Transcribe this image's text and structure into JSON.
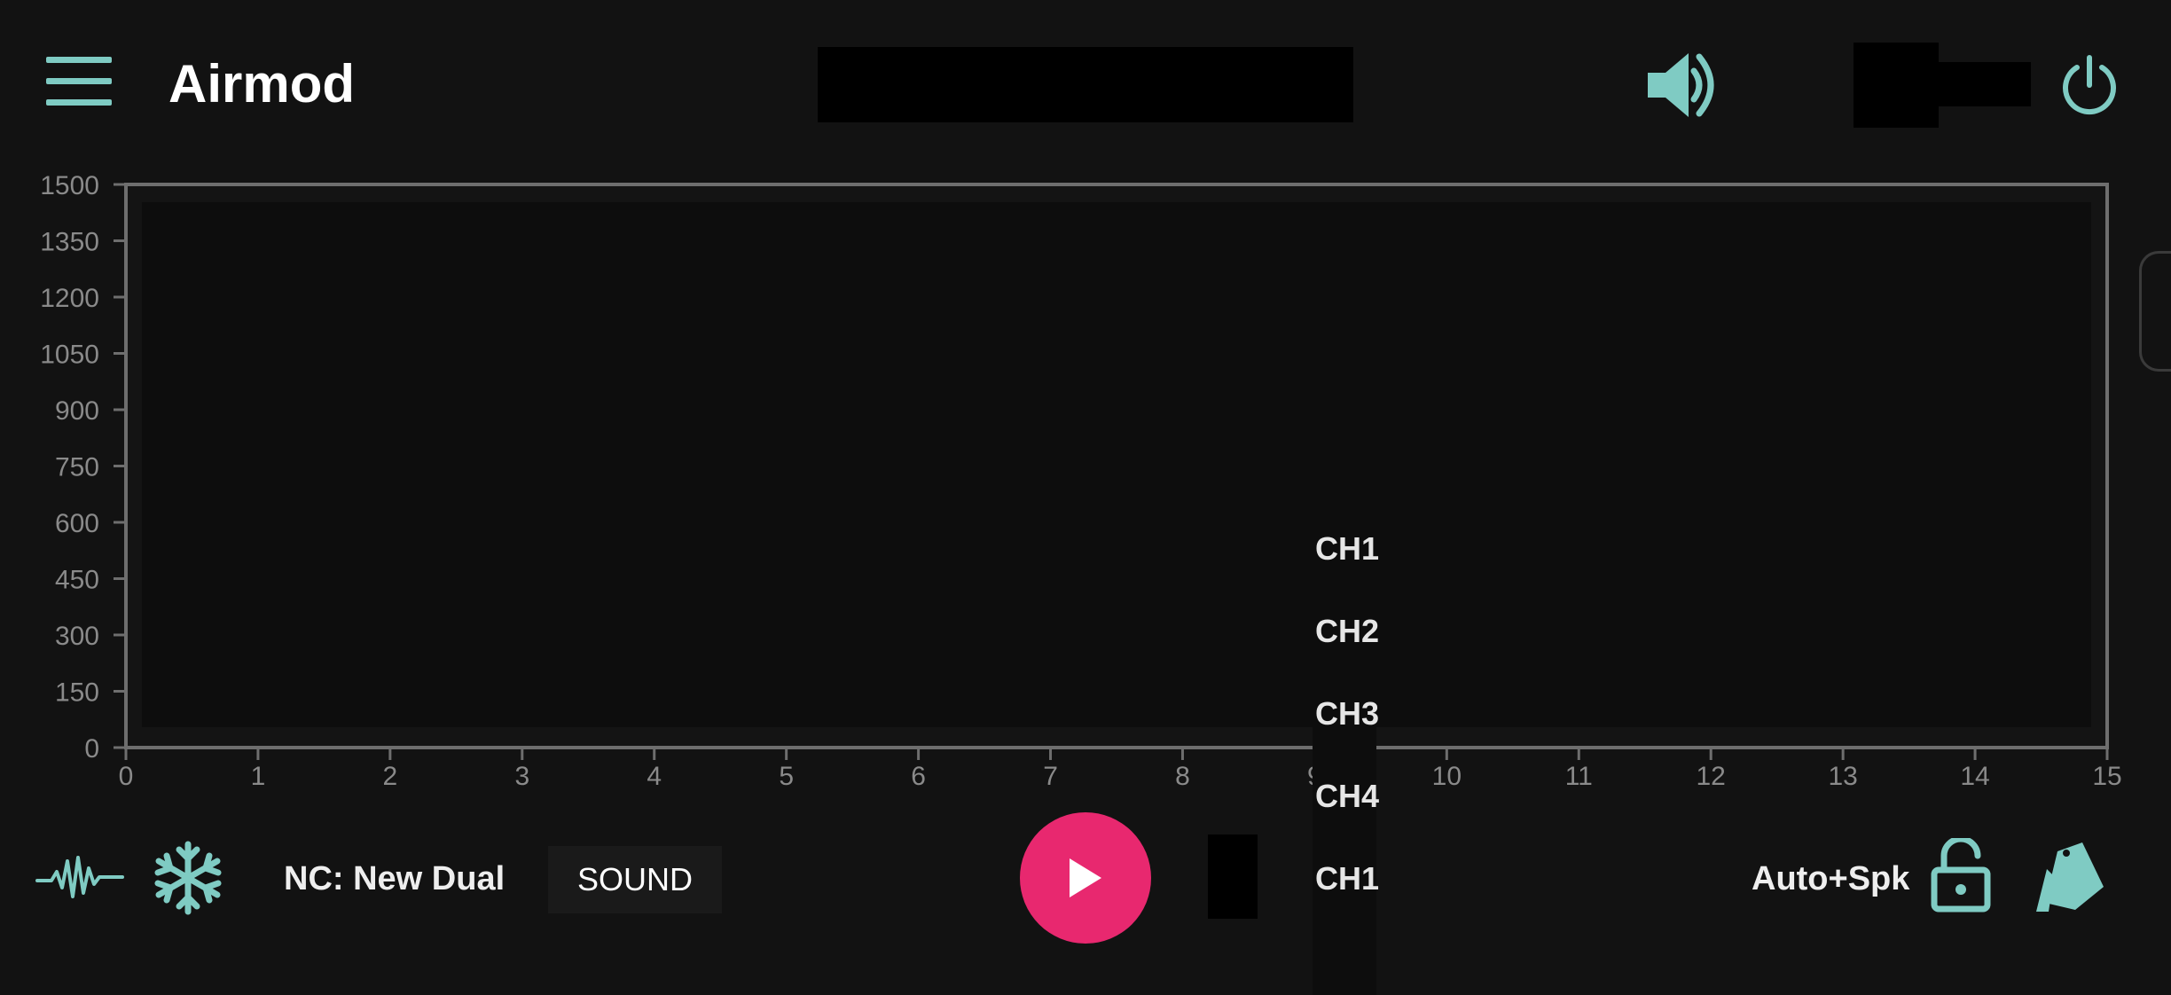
{
  "header": {
    "title": "Airmod",
    "menu_icon": "hamburger-menu-icon",
    "volume_icon": "volume-icon",
    "power_icon": "power-icon"
  },
  "chart_data": {
    "type": "line",
    "title": "",
    "xlabel": "",
    "ylabel": "",
    "xlim": [
      0,
      15
    ],
    "ylim": [
      0,
      1500
    ],
    "x_ticks": [
      "0",
      "1",
      "2",
      "3",
      "4",
      "5",
      "6",
      "7",
      "8",
      "9",
      "10",
      "11",
      "12",
      "13",
      "14",
      "15"
    ],
    "y_ticks": [
      "0",
      "150",
      "300",
      "450",
      "600",
      "750",
      "900",
      "1050",
      "1200",
      "1350",
      "1500"
    ],
    "series": [],
    "grid": false
  },
  "channel_menu": {
    "items": [
      "CH1",
      "CH2",
      "CH3",
      "CH4",
      "CH1"
    ]
  },
  "bottom_bar": {
    "waveform_icon": "waveform-icon",
    "freeze_icon": "snowflake-icon",
    "nc_label": "NC: New Dual",
    "sound_label": "SOUND",
    "play_icon": "play-icon",
    "mode_label": "Auto+Spk",
    "lock_icon": "lock-open-icon",
    "eraser_icon": "eraser-icon"
  },
  "colors": {
    "accent": "#7fcbc3",
    "play": "#e8286f",
    "background": "#121212"
  }
}
